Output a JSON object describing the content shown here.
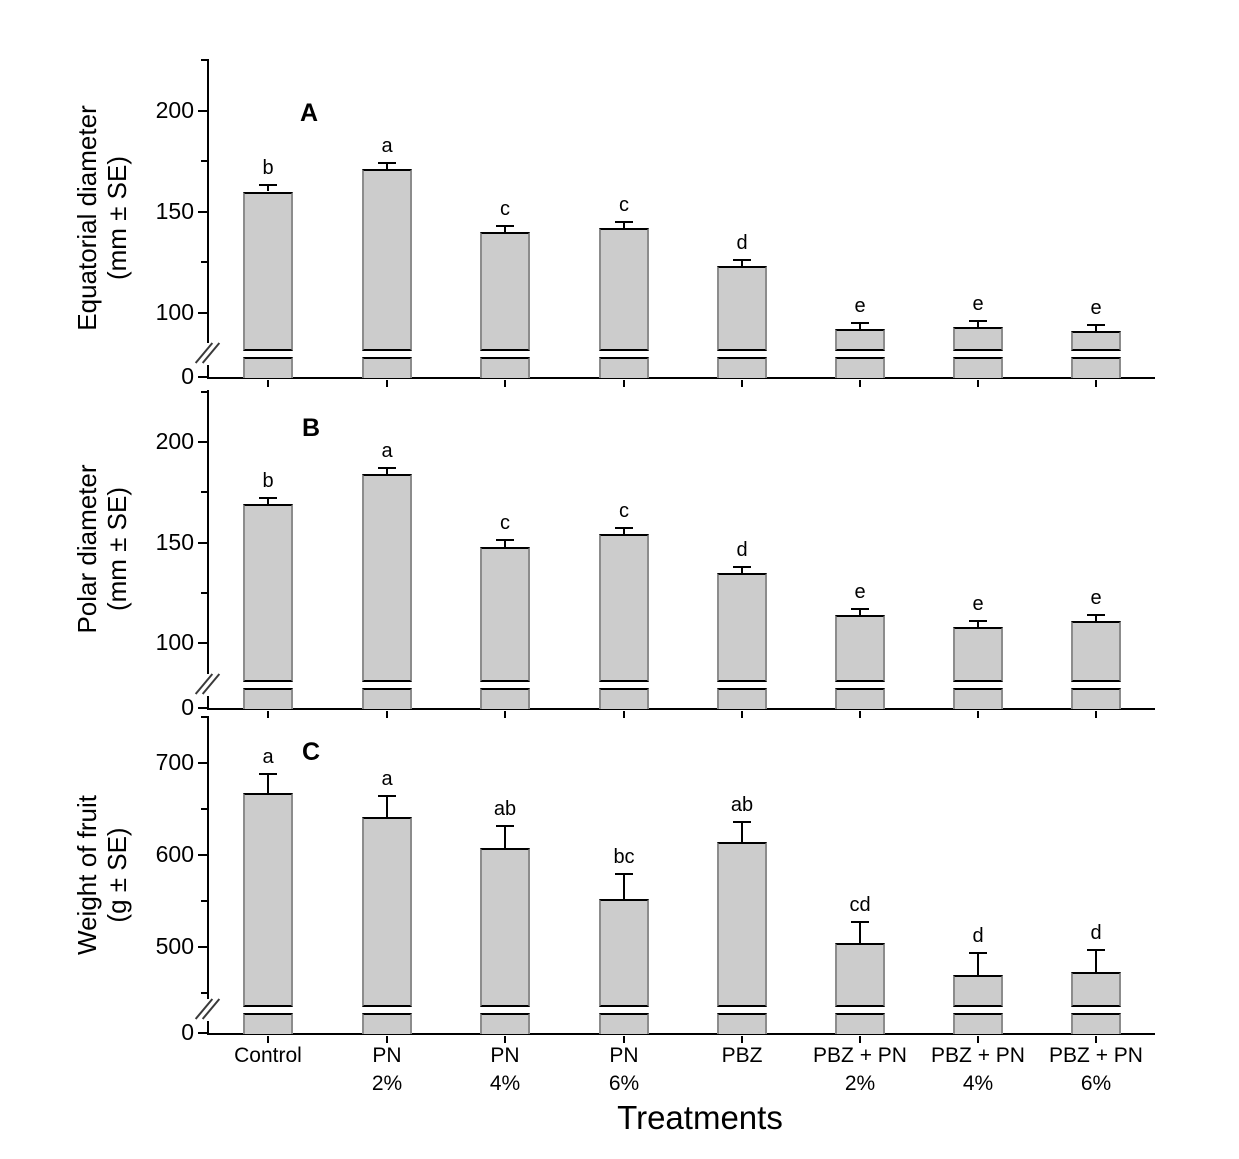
{
  "figure": {
    "background": "#ffffff",
    "bar_fill": "#cccccc",
    "bar_edge_side": "#8c8c8c",
    "bar_edge_dark": "#000000",
    "axis_color": "#000000"
  },
  "x_axis": {
    "title": "Treatments",
    "tick_labels": [
      {
        "line1": "Control",
        "line2": ""
      },
      {
        "line1": "PN",
        "line2": "2%"
      },
      {
        "line1": "PN",
        "line2": "4%"
      },
      {
        "line1": "PN",
        "line2": "6%"
      },
      {
        "line1": "PBZ",
        "line2": ""
      },
      {
        "line1": "PBZ + PN",
        "line2": "2%"
      },
      {
        "line1": "PBZ + PN",
        "line2": "4%"
      },
      {
        "line1": "PBZ + PN",
        "line2": "6%"
      }
    ]
  },
  "chart_data": [
    {
      "type": "bar",
      "panel_label": "A",
      "ylabel": [
        "Equatorial diameter",
        "(mm ± SE)"
      ],
      "categories": [
        "Control",
        "PN 2%",
        "PN 4%",
        "PN 6%",
        "PBZ",
        "PBZ + PN 2%",
        "PBZ + PN 4%",
        "PBZ + PN 6%"
      ],
      "values": [
        160,
        171,
        140,
        142,
        123,
        92,
        93,
        91
      ],
      "errors": [
        3,
        3,
        3,
        3,
        3,
        3,
        3,
        3
      ],
      "sig_letters": [
        "b",
        "a",
        "c",
        "c",
        "d",
        "e",
        "e",
        "e"
      ],
      "y_major_ticks": [
        100,
        150,
        200
      ],
      "y_minor_ticks": [
        125,
        175,
        225
      ],
      "zero_tick_label": "0",
      "axis_break": true,
      "break_hidden_range": [
        15,
        80
      ],
      "ylim": [
        0,
        225
      ],
      "grid": false,
      "legend": null
    },
    {
      "type": "bar",
      "panel_label": "B",
      "ylabel": [
        "Polar diameter",
        "(mm ± SE)"
      ],
      "categories": [
        "Control",
        "PN 2%",
        "PN 4%",
        "PN 6%",
        "PBZ",
        "PBZ + PN 2%",
        "PBZ + PN 4%",
        "PBZ + PN 6%"
      ],
      "values": [
        169,
        184,
        148,
        154,
        135,
        114,
        108,
        111
      ],
      "errors": [
        3,
        3,
        3,
        3,
        3,
        3,
        3,
        3
      ],
      "sig_letters": [
        "b",
        "a",
        "c",
        "c",
        "d",
        "e",
        "e",
        "e"
      ],
      "y_major_ticks": [
        100,
        150,
        200
      ],
      "y_minor_ticks": [
        125,
        175,
        225
      ],
      "zero_tick_label": "0",
      "axis_break": true,
      "break_hidden_range": [
        15,
        80
      ],
      "ylim": [
        0,
        225
      ],
      "grid": false,
      "legend": null
    },
    {
      "type": "bar",
      "panel_label": "C",
      "ylabel": [
        "Weight of fruit",
        "(g ± SE)"
      ],
      "categories": [
        "Control",
        "PN 2%",
        "PN 4%",
        "PN 6%",
        "PBZ",
        "PBZ + PN 2%",
        "PBZ + PN 4%",
        "PBZ + PN 6%"
      ],
      "values": [
        667,
        641,
        608,
        552,
        614,
        504,
        470,
        473
      ],
      "errors": [
        21,
        23,
        23,
        27,
        22,
        23,
        24,
        24
      ],
      "sig_letters": [
        "a",
        "a",
        "ab",
        "bc",
        "ab",
        "cd",
        "d",
        "d"
      ],
      "y_major_ticks": [
        500,
        600,
        700
      ],
      "y_minor_ticks": [
        450,
        550,
        650,
        750
      ],
      "zero_tick_label": "0",
      "axis_break": true,
      "break_hidden_range": [
        60,
        440
      ],
      "ylim": [
        0,
        750
      ],
      "grid": false,
      "legend": null
    }
  ]
}
